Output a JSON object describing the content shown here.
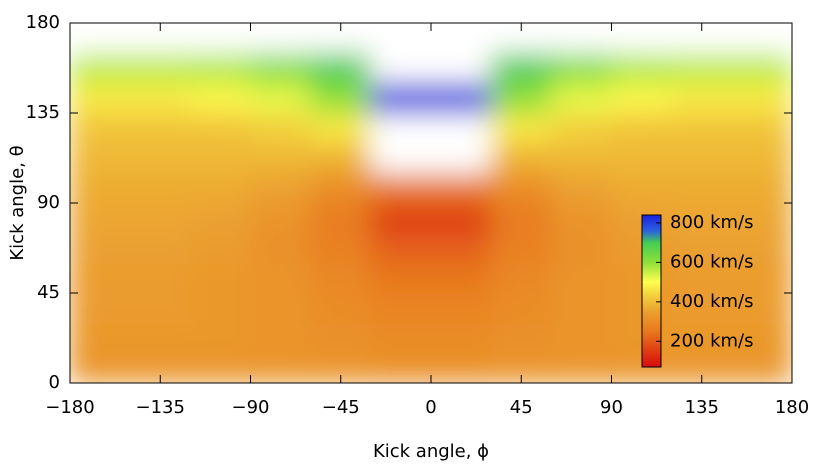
{
  "chart_data": {
    "type": "heatmap",
    "xlabel": "Kick angle, ϕ",
    "ylabel": "Kick angle, θ",
    "x": [
      -165,
      -135,
      -105,
      -75,
      -45,
      -15,
      15,
      45,
      75,
      105,
      135,
      165
    ],
    "y": [
      7.5,
      22.5,
      37.5,
      52.5,
      67.5,
      82.5,
      97.5,
      112.5,
      127.5,
      142.5,
      157.5,
      172.5
    ],
    "cell_width": 30,
    "cell_height": 15,
    "values": [
      [
        320,
        320,
        320,
        320,
        320,
        310,
        310,
        320,
        320,
        320,
        320,
        320
      ],
      [
        330,
        330,
        330,
        320,
        310,
        300,
        300,
        310,
        320,
        330,
        330,
        330
      ],
      [
        340,
        340,
        330,
        320,
        300,
        280,
        280,
        300,
        320,
        330,
        340,
        340
      ],
      [
        340,
        340,
        330,
        320,
        290,
        250,
        250,
        290,
        320,
        330,
        340,
        340
      ],
      [
        350,
        350,
        340,
        310,
        270,
        210,
        210,
        270,
        310,
        340,
        350,
        350
      ],
      [
        360,
        360,
        350,
        320,
        260,
        150,
        150,
        260,
        320,
        350,
        360,
        360
      ],
      [
        370,
        370,
        370,
        350,
        300,
        250,
        250,
        300,
        350,
        370,
        370,
        370
      ],
      [
        390,
        390,
        390,
        390,
        380,
        null,
        null,
        380,
        390,
        390,
        390,
        390
      ],
      [
        410,
        410,
        410,
        430,
        470,
        null,
        null,
        470,
        430,
        410,
        410,
        410
      ],
      [
        470,
        470,
        490,
        520,
        600,
        820,
        820,
        600,
        520,
        490,
        470,
        470
      ],
      [
        560,
        560,
        570,
        620,
        700,
        null,
        null,
        700,
        620,
        570,
        560,
        560
      ],
      [
        null,
        null,
        null,
        null,
        null,
        null,
        null,
        null,
        null,
        null,
        null,
        null
      ]
    ],
    "xlim": [
      -180,
      180
    ],
    "xticks": [
      {
        "value": -180,
        "label": "−180"
      },
      {
        "value": -135,
        "label": "−135"
      },
      {
        "value": -90,
        "label": "−90"
      },
      {
        "value": -45,
        "label": "−45"
      },
      0,
      45,
      90,
      135,
      180
    ],
    "ylim": [
      0,
      180
    ],
    "yticks": [
      0,
      45,
      90,
      135,
      180
    ],
    "clim": [
      70,
      840
    ],
    "cticks": [
      {
        "value": 200,
        "label": "200 km/s"
      },
      {
        "value": 400,
        "label": "400 km/s"
      },
      {
        "value": 600,
        "label": "600 km/s"
      },
      {
        "value": 800,
        "label": "800 km/s"
      }
    ],
    "colorscale": [
      [
        70,
        "#d80a0a"
      ],
      [
        250,
        "#e8781e"
      ],
      [
        350,
        "#eba030"
      ],
      [
        450,
        "#f5dc40"
      ],
      [
        500,
        "#ffff50"
      ],
      [
        600,
        "#8ee03a"
      ],
      [
        700,
        "#44cc55"
      ],
      [
        760,
        "#2a60e0"
      ],
      [
        840,
        "#1a22dd"
      ]
    ]
  }
}
